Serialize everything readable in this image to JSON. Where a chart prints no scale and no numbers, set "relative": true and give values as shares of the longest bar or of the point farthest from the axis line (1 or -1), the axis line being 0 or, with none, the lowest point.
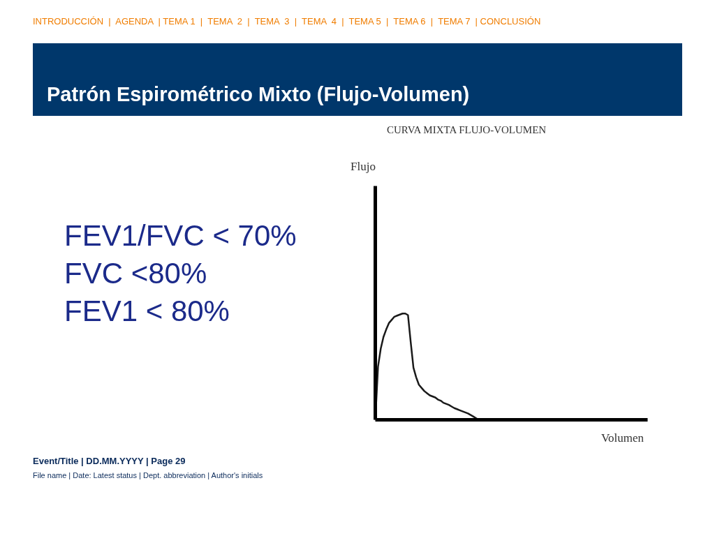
{
  "chart_data": {
    "type": "line",
    "title": "Patrón Espirométrico Mixto (Flujo-Volumen)",
    "subtitle": "CURVA MIXTA FLUJO-VOLUMEN",
    "relative": true,
    "categories": [
      null,
      null,
      null,
      null,
      null,
      null,
      null,
      null,
      null,
      null,
      null,
      null,
      null,
      null,
      null,
      null,
      null,
      null,
      null,
      null,
      null,
      null,
      null,
      null,
      null,
      null,
      null,
      null,
      null,
      null,
      null,
      null,
      null,
      null,
      null,
      null,
      null,
      null,
      null
    ],
    "series": [
      {
        "color": "#1a1a1a",
        "values": [
          0,
          0.5,
          0.67,
          0.78,
          0.85,
          0.91,
          0.94,
          0.97,
          0.98,
          0.99,
          1.0,
          1.0,
          0.985,
          0.73,
          0.49,
          0.4,
          0.33,
          0.3,
          0.27,
          0.25,
          0.23,
          0.22,
          0.21,
          0.19,
          0.18,
          0.16,
          0.15,
          0.14,
          0.125,
          0.11,
          0.1,
          0.09,
          0.08,
          0.07,
          0.06,
          0.045,
          0.03,
          0.015,
          0
        ]
      }
    ],
    "marker": "none",
    "line_style": "solid",
    "grid": false,
    "annotations": [
      "INTRODUCCIÓN  |  AGENDA  | TEMA 1  |  TEMA  2  |  TEMA  3  |  TEMA  4  |  TEMA 5  |  TEMA 6  |  TEMA 7  | CONCLUSIÓN",
      "FEV1/FVC < 70%",
      "FVC <80%",
      "FEV1 < 80%",
      "Flujo",
      "Volumen",
      "Event/Title  |  DD.MM.YYYY  |  Page 29",
      "File name | Date: Latest status | Dept. abbreviation | Author's initials"
    ]
  }
}
